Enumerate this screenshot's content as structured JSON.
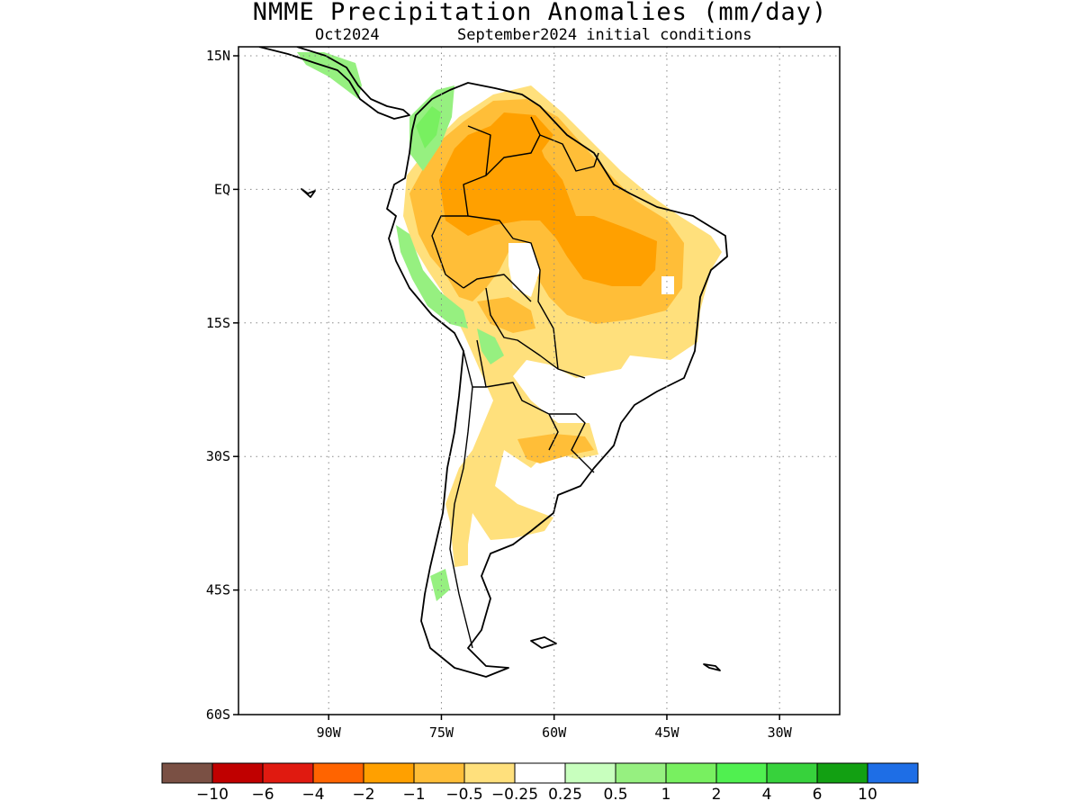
{
  "title": "NMME Precipitation Anomalies (mm/day)",
  "subtitle_left": "Oct2024",
  "subtitle_right": "September2024 initial conditions",
  "map": {
    "lon_range": [
      -102,
      -22
    ],
    "lat_range": [
      -60,
      15
    ],
    "y_ticks": [
      {
        "lat": 15,
        "label": "15N"
      },
      {
        "lat": 0,
        "label": "EQ"
      },
      {
        "lat": -15,
        "label": "15S"
      },
      {
        "lat": -30,
        "label": "30S"
      },
      {
        "lat": -45,
        "label": "45S"
      },
      {
        "lat": -60,
        "label": "60S"
      }
    ],
    "x_ticks": [
      {
        "lon": -90,
        "label": "90W"
      },
      {
        "lon": -75,
        "label": "75W"
      },
      {
        "lon": -60,
        "label": "60W"
      },
      {
        "lon": -45,
        "label": "45W"
      },
      {
        "lon": -30,
        "label": "30W"
      }
    ],
    "grid": true
  },
  "colorbar": {
    "colors": [
      "#7a5044",
      "#c00000",
      "#e01a10",
      "#ff6400",
      "#ffa000",
      "#ffbe38",
      "#ffe07c",
      "#ffffff",
      "#c8ffbe",
      "#96f080",
      "#78f060",
      "#50f050",
      "#37d23c",
      "#12a012",
      "#1e6ee6"
    ],
    "labels": [
      "−10",
      "−6",
      "−4",
      "−2",
      "−1",
      "−0.5",
      "−0.25",
      "0.25",
      "0.5",
      "1",
      "2",
      "4",
      "6",
      "10"
    ]
  },
  "regions": [
    {
      "name": "strong-dry-anomaly-amazon",
      "color": "#ffa000",
      "anomaly": "-1 to -2"
    },
    {
      "name": "moderate-dry-anomaly-brazil",
      "color": "#ffbe38",
      "anomaly": "-0.5 to -1"
    },
    {
      "name": "weak-dry-anomaly",
      "color": "#ffe07c",
      "anomaly": "-0.25 to -0.5"
    },
    {
      "name": "weak-wet-anomaly-andes",
      "color": "#96f080",
      "anomaly": "0.5 to 1"
    },
    {
      "name": "wet-anomaly-colombia",
      "color": "#78f060",
      "anomaly": "1 to 2"
    }
  ]
}
